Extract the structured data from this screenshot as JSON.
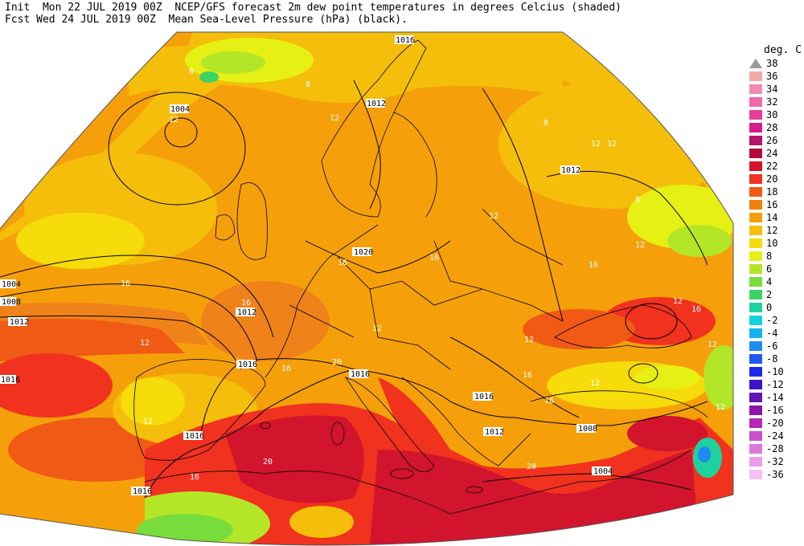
{
  "header": {
    "line1": "Init  Mon 22 JUL 2019 00Z  NCEP/GFS forecast 2m dew point temperatures in degrees Celcius (shaded)",
    "line2": "Fcst Wed 24 JUL 2019 00Z  Mean Sea-Level Pressure (hPa) (black)."
  },
  "legend": {
    "unit": "deg. C",
    "top_marker": "38",
    "items": [
      {
        "label": "36",
        "color": "#f5a8a8"
      },
      {
        "label": "34",
        "color": "#f08cb4"
      },
      {
        "label": "32",
        "color": "#ee6aa8"
      },
      {
        "label": "30",
        "color": "#e63c9e"
      },
      {
        "label": "28",
        "color": "#d21e8c"
      },
      {
        "label": "26",
        "color": "#b4146e"
      },
      {
        "label": "24",
        "color": "#b40a3c"
      },
      {
        "label": "22",
        "color": "#d2142d"
      },
      {
        "label": "20",
        "color": "#f0321e"
      },
      {
        "label": "18",
        "color": "#f05a14"
      },
      {
        "label": "16",
        "color": "#f0820a"
      },
      {
        "label": "14",
        "color": "#f5a00a"
      },
      {
        "label": "12",
        "color": "#f5be0a"
      },
      {
        "label": "10",
        "color": "#f5dc0a"
      },
      {
        "label": "8",
        "color": "#e6f014"
      },
      {
        "label": "6",
        "color": "#b4e628"
      },
      {
        "label": "4",
        "color": "#78dc3c"
      },
      {
        "label": "2",
        "color": "#3cd264"
      },
      {
        "label": "0",
        "color": "#1ed2a0"
      },
      {
        "label": "-2",
        "color": "#14d2dc"
      },
      {
        "label": "-4",
        "color": "#14b4f0"
      },
      {
        "label": "-6",
        "color": "#1e8cf0"
      },
      {
        "label": "-8",
        "color": "#1e5af0"
      },
      {
        "label": "-10",
        "color": "#1e28e6"
      },
      {
        "label": "-12",
        "color": "#3c14c8"
      },
      {
        "label": "-14",
        "color": "#6414b4"
      },
      {
        "label": "-16",
        "color": "#8c14aa"
      },
      {
        "label": "-20",
        "color": "#b428b4"
      },
      {
        "label": "-24",
        "color": "#c850c8"
      },
      {
        "label": "-28",
        "color": "#dc78dc"
      },
      {
        "label": "-32",
        "color": "#ec9cec"
      },
      {
        "label": "-36",
        "color": "#f5c0f5"
      }
    ]
  },
  "isobar_labels": [
    "1016",
    "1004",
    "1012",
    "1012",
    "1004",
    "1008",
    "1012",
    "1020",
    "1012",
    "1016",
    "1016",
    "1016",
    "1016",
    "1012",
    "1016",
    "1008",
    "1004",
    "1016"
  ],
  "dewpoint_labels": [
    "12",
    "8",
    "12",
    "12",
    "8",
    "12",
    "12",
    "16",
    "16",
    "16",
    "12",
    "16",
    "12",
    "16",
    "16",
    "12",
    "20",
    "20",
    "16",
    "12",
    "12",
    "16",
    "12",
    "12",
    "12",
    "16",
    "20",
    "16",
    "8",
    "8",
    "12"
  ]
}
